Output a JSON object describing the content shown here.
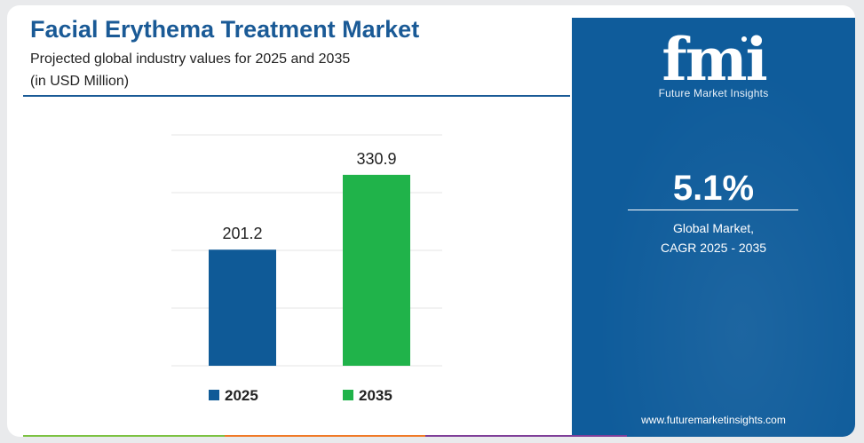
{
  "header": {
    "title": "Facial Erythema Treatment Market",
    "subtitle_line1": "Projected global industry values for 2025 and 2035",
    "subtitle_line2": "(in USD Million)"
  },
  "chart_data": {
    "type": "bar",
    "categories": [
      "2025",
      "2035"
    ],
    "values": [
      201.2,
      330.9
    ],
    "value_labels": [
      "201.2",
      "330.9"
    ],
    "colors": [
      "#0f5a97",
      "#20b34a"
    ],
    "legend": [
      "2025",
      "2035"
    ],
    "legend_placement": "bottom",
    "grid": true,
    "ylim": [
      0,
      400
    ],
    "title": "",
    "xlabel": "",
    "ylabel": ""
  },
  "panel": {
    "logo_text": "fmi",
    "logo_tagline": "Future Market Insights",
    "cagr_value": "5.1%",
    "cagr_label_line1": "Global Market,",
    "cagr_label_line2": "CAGR 2025 - 2035",
    "website": "www.futuremarketinsights.com",
    "background_color": "#0f5c9b"
  },
  "accent_strip_colors": [
    "#7cc242",
    "#f07a27",
    "#7f3f98"
  ]
}
